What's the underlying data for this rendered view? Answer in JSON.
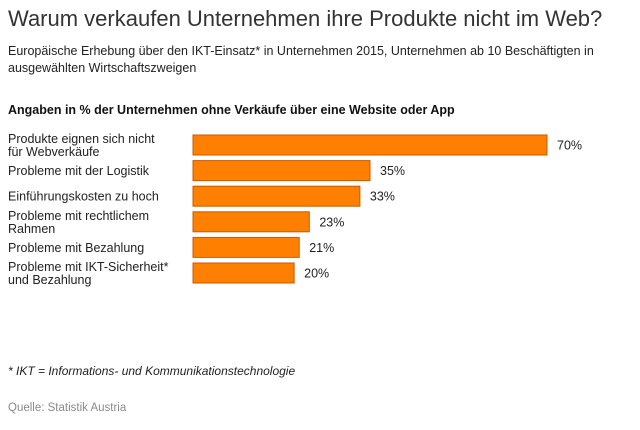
{
  "header": {
    "title": "Warum verkaufen Unternehmen ihre Produkte nicht im Web?",
    "subtitle": "Europäische Erhebung über den IKT-Einsatz* in Unternehmen 2015, Unternehmen ab 10 Beschäftigten in ausgewählten Wirtschaftszweigen"
  },
  "chart_data": {
    "type": "bar",
    "orientation": "horizontal",
    "title": "Angaben in % der Unternehmen ohne Verkäufe über eine Website oder App",
    "categories": [
      [
        "Produkte eignen sich nicht",
        "für Webverkäufe"
      ],
      [
        "Probleme mit der Logistik"
      ],
      [
        "Einführungskosten zu hoch"
      ],
      [
        "Probleme mit rechtlichem",
        "Rahmen"
      ],
      [
        "Probleme mit Bezahlung"
      ],
      [
        "Probleme mit IKT-Sicherheit*",
        "und Bezahlung"
      ]
    ],
    "values": [
      70,
      35,
      33,
      23,
      21,
      20
    ],
    "value_labels": [
      "70%",
      "35%",
      "33%",
      "23%",
      "21%",
      "20%"
    ],
    "unit": "%",
    "xlim": [
      0,
      70
    ],
    "grid": false,
    "legend": "none",
    "bar_color": "#ff8000",
    "bar_edge_color": "#c85a00"
  },
  "footnote": "* IKT = Informations- und Kommunikationstechnologie",
  "source": "Quelle: Statistik Austria"
}
